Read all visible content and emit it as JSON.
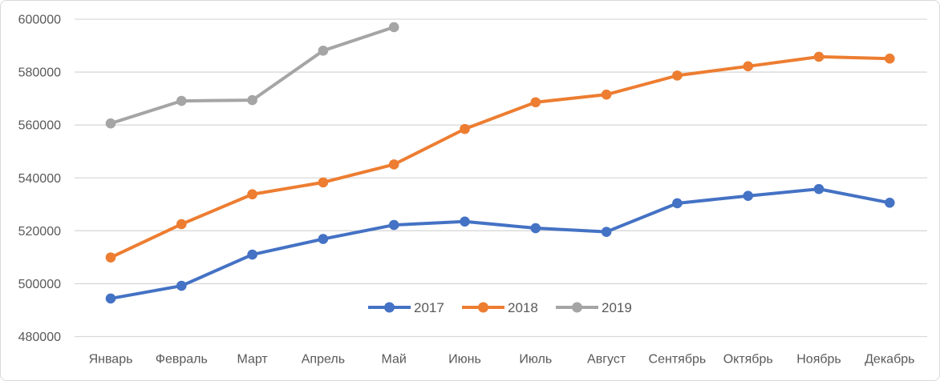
{
  "chart_data": {
    "type": "line",
    "title": "",
    "xlabel": "",
    "ylabel": "",
    "categories": [
      "Январь",
      "Февраль",
      "Март",
      "Апрель",
      "Май",
      "Июнь",
      "Июль",
      "Август",
      "Сентябрь",
      "Октябрь",
      "Ноябрь",
      "Декабрь"
    ],
    "series": [
      {
        "name": "2017",
        "color": "#4472C4",
        "values": [
          494400,
          499200,
          511000,
          516900,
          522200,
          523500,
          521000,
          519600,
          530400,
          533200,
          535800,
          530600
        ]
      },
      {
        "name": "2018",
        "color": "#ED7D31",
        "values": [
          509900,
          522500,
          533800,
          538300,
          545100,
          558500,
          568600,
          571500,
          578700,
          582200,
          585800,
          585100
        ]
      },
      {
        "name": "2019",
        "color": "#A5A5A5",
        "values": [
          560600,
          569100,
          569400,
          588100,
          597000
        ]
      }
    ],
    "ylim": [
      480000,
      600000
    ],
    "y_ticks": [
      600000,
      580000,
      560000,
      540000,
      520000,
      500000,
      480000
    ],
    "y_tick_labels": [
      "600000",
      "580000",
      "560000",
      "540000",
      "520000",
      "500000",
      "480000"
    ],
    "grid": true,
    "marker": "circle",
    "legend_position": "bottom-center-inside",
    "legend_labels": [
      "2017",
      "2018",
      "2019"
    ]
  },
  "style": {
    "background": "#FFFFFF",
    "border_color": "#D9D9D9",
    "gridline_color": "#D9D9D9",
    "axis_text_color": "#595959"
  }
}
